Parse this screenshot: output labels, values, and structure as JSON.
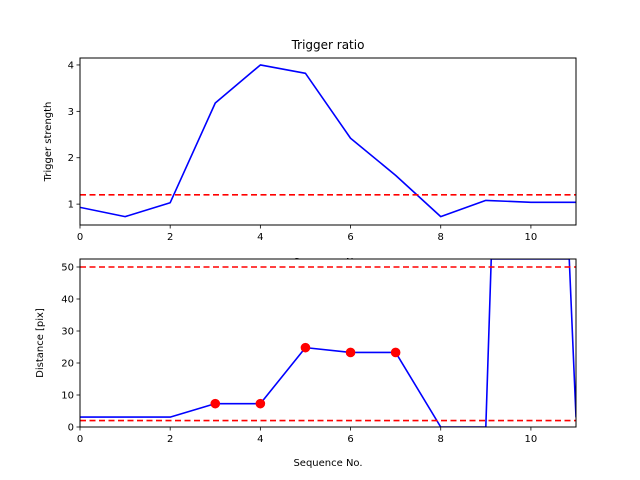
{
  "chart_data": [
    {
      "type": "line",
      "title": "Trigger ratio",
      "xlabel": "Sequence No.",
      "ylabel": "Trigger strength",
      "xlim": [
        0,
        11
      ],
      "ylim": [
        0.55,
        4.15
      ],
      "xticks": [
        0,
        2,
        4,
        6,
        8,
        10
      ],
      "yticks": [
        1,
        2,
        3,
        4
      ],
      "series": [
        {
          "color": "#0000ff",
          "style": "solid",
          "x": [
            0,
            1,
            2,
            3,
            4,
            5,
            6,
            7,
            8,
            9,
            10,
            11
          ],
          "y": [
            0.93,
            0.73,
            1.03,
            3.18,
            4.0,
            3.82,
            2.42,
            1.62,
            0.73,
            1.08,
            1.04,
            1.04
          ]
        }
      ],
      "thresholds": [
        {
          "y": 1.2,
          "color": "#ff0000",
          "style": "dashed"
        }
      ]
    },
    {
      "type": "line",
      "title": "",
      "xlabel": "Sequence No.",
      "ylabel": "Distance [pix]",
      "xlim": [
        0,
        11
      ],
      "ylim": [
        0,
        52.5
      ],
      "xticks": [
        0,
        2,
        4,
        6,
        8,
        10
      ],
      "yticks": [
        0,
        10,
        20,
        30,
        40,
        50
      ],
      "series": [
        {
          "color": "#0000ff",
          "style": "solid",
          "x": [
            0,
            1,
            2,
            3,
            4,
            5,
            6,
            7,
            8,
            9,
            9.12,
            10.85,
            11
          ],
          "y": [
            3.1,
            3.1,
            3.1,
            7.3,
            7.3,
            24.8,
            23.3,
            23.3,
            0,
            0,
            52.5,
            52.5,
            3
          ]
        }
      ],
      "markers": {
        "color": "#ff0000",
        "x": [
          3,
          4,
          5,
          6,
          7
        ],
        "y": [
          7.3,
          7.3,
          24.8,
          23.3,
          23.3
        ]
      },
      "thresholds": [
        {
          "y": 50,
          "color": "#ff0000",
          "style": "dashed"
        },
        {
          "y": 2,
          "color": "#ff0000",
          "style": "dashed"
        }
      ]
    }
  ]
}
